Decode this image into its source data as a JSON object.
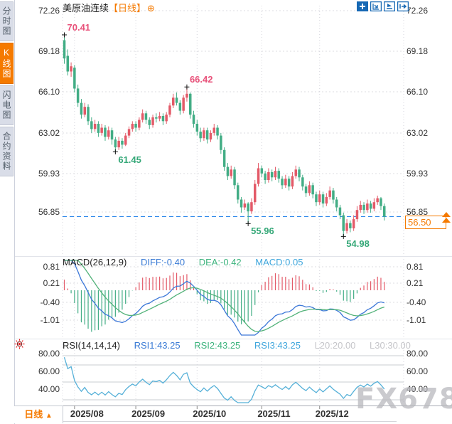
{
  "header": {
    "title": "美原油连续",
    "period": "【日线】",
    "plus_icon": "⊕"
  },
  "toolbar": {
    "icons": [
      {
        "name": "crosshair-icon"
      },
      {
        "name": "auto-scale-icon"
      },
      {
        "name": "play-forward-icon"
      },
      {
        "name": "pan-right-icon"
      }
    ]
  },
  "sidebar": {
    "items": [
      {
        "label": "分时图",
        "active": false
      },
      {
        "label": "K线图",
        "active": true
      },
      {
        "label": "闪电图",
        "active": false
      },
      {
        "label": "合约资料",
        "active": false
      }
    ]
  },
  "price_marker": {
    "value": "56.50"
  },
  "period_button": {
    "label": "日线",
    "arrow": "▲"
  },
  "watermark": "FX678",
  "chart_data": {
    "type": "candlestick",
    "title": "美原油连续 日线 (WTI crude continuous, daily)",
    "price_axis": {
      "labels": [
        "72.26",
        "69.18",
        "66.10",
        "63.02",
        "59.93",
        "56.85"
      ],
      "values": [
        72.26,
        69.18,
        66.1,
        63.02,
        59.93,
        56.85
      ]
    },
    "x_axis": {
      "labels": [
        "2025/08",
        "2025/09",
        "2025/10",
        "2025/11",
        "2025/12"
      ],
      "tick_indices": [
        3,
        21,
        39,
        58,
        75
      ]
    },
    "current_price": 56.5,
    "annotations": [
      {
        "text": "70.41",
        "index": 0,
        "price": 70.41,
        "placement": "above",
        "color": "#e8527a"
      },
      {
        "text": "66.42",
        "index": 36,
        "price": 66.42,
        "placement": "above",
        "color": "#e8527a"
      },
      {
        "text": "61.45",
        "index": 15,
        "price": 61.45,
        "placement": "below",
        "color": "#35a878"
      },
      {
        "text": "55.96",
        "index": 54,
        "price": 55.96,
        "placement": "below",
        "color": "#35a878"
      },
      {
        "text": "54.98",
        "index": 82,
        "price": 54.98,
        "placement": "below",
        "color": "#35a878"
      }
    ],
    "ohlc": [
      [
        70.0,
        70.41,
        68.2,
        68.6
      ],
      [
        68.8,
        69.3,
        67.3,
        67.6
      ],
      [
        67.6,
        68.3,
        67.2,
        68.0
      ],
      [
        67.9,
        68.1,
        66.0,
        66.3
      ],
      [
        66.3,
        66.6,
        64.9,
        65.2
      ],
      [
        65.2,
        65.5,
        64.0,
        64.3
      ],
      [
        64.3,
        65.2,
        64.1,
        64.9
      ],
      [
        64.9,
        65.1,
        63.5,
        63.8
      ],
      [
        63.8,
        64.1,
        62.9,
        63.2
      ],
      [
        63.2,
        63.9,
        63.0,
        63.6
      ],
      [
        63.6,
        63.8,
        62.6,
        62.9
      ],
      [
        62.9,
        63.6,
        62.7,
        63.3
      ],
      [
        63.3,
        63.5,
        62.3,
        62.6
      ],
      [
        62.6,
        63.4,
        62.4,
        63.1
      ],
      [
        63.1,
        63.3,
        62.0,
        62.4
      ],
      [
        62.4,
        62.6,
        61.45,
        61.8
      ],
      [
        61.8,
        62.6,
        61.6,
        62.3
      ],
      [
        62.3,
        62.5,
        61.7,
        62.0
      ],
      [
        62.0,
        62.9,
        61.9,
        62.7
      ],
      [
        62.7,
        63.4,
        62.5,
        63.2
      ],
      [
        63.2,
        63.8,
        63.0,
        63.6
      ],
      [
        63.6,
        63.8,
        63.0,
        63.3
      ],
      [
        63.3,
        64.1,
        63.1,
        63.9
      ],
      [
        63.9,
        64.7,
        63.7,
        64.4
      ],
      [
        64.4,
        64.6,
        63.6,
        63.9
      ],
      [
        63.9,
        64.1,
        63.2,
        63.5
      ],
      [
        63.5,
        64.3,
        63.3,
        64.1
      ],
      [
        64.1,
        64.4,
        63.7,
        64.0
      ],
      [
        64.0,
        64.5,
        63.8,
        64.2
      ],
      [
        64.2,
        64.4,
        63.5,
        63.8
      ],
      [
        63.8,
        64.5,
        63.6,
        64.3
      ],
      [
        64.3,
        65.2,
        64.1,
        65.0
      ],
      [
        65.0,
        65.9,
        64.8,
        65.6
      ],
      [
        65.6,
        66.0,
        65.0,
        65.2
      ],
      [
        65.2,
        65.4,
        64.3,
        64.6
      ],
      [
        64.6,
        65.8,
        64.4,
        65.6
      ],
      [
        65.6,
        66.42,
        65.3,
        65.9
      ],
      [
        65.9,
        66.0,
        64.0,
        64.3
      ],
      [
        64.3,
        64.6,
        63.3,
        63.6
      ],
      [
        63.6,
        63.9,
        62.7,
        63.0
      ],
      [
        63.0,
        63.3,
        62.2,
        62.5
      ],
      [
        62.5,
        63.3,
        62.3,
        63.1
      ],
      [
        63.1,
        63.3,
        62.1,
        62.4
      ],
      [
        62.4,
        63.1,
        62.2,
        62.9
      ],
      [
        62.9,
        63.6,
        62.7,
        63.3
      ],
      [
        63.3,
        63.5,
        62.4,
        62.7
      ],
      [
        62.7,
        62.9,
        61.3,
        61.6
      ],
      [
        61.6,
        61.8,
        60.0,
        60.3
      ],
      [
        60.3,
        60.6,
        59.3,
        59.6
      ],
      [
        59.6,
        60.4,
        59.4,
        60.1
      ],
      [
        60.1,
        60.3,
        58.6,
        58.9
      ],
      [
        58.9,
        59.1,
        57.5,
        57.8
      ],
      [
        57.8,
        58.0,
        56.8,
        57.2
      ],
      [
        57.2,
        57.8,
        57.0,
        57.5
      ],
      [
        57.5,
        57.6,
        55.96,
        56.9
      ],
      [
        56.9,
        57.9,
        56.7,
        57.6
      ],
      [
        57.6,
        59.3,
        57.4,
        59.0
      ],
      [
        59.0,
        60.6,
        58.8,
        60.2
      ],
      [
        60.2,
        60.4,
        59.5,
        59.8
      ],
      [
        59.8,
        60.0,
        59.0,
        59.3
      ],
      [
        59.3,
        60.2,
        59.1,
        59.9
      ],
      [
        59.9,
        60.1,
        59.2,
        59.5
      ],
      [
        59.5,
        60.3,
        59.3,
        60.0
      ],
      [
        60.0,
        60.2,
        59.1,
        59.4
      ],
      [
        59.4,
        59.6,
        58.6,
        58.9
      ],
      [
        58.9,
        59.7,
        58.7,
        59.4
      ],
      [
        59.4,
        59.6,
        58.5,
        58.8
      ],
      [
        58.8,
        59.9,
        58.6,
        59.6
      ],
      [
        59.6,
        60.4,
        59.4,
        60.1
      ],
      [
        60.1,
        60.3,
        59.2,
        59.5
      ],
      [
        59.5,
        59.7,
        58.5,
        58.8
      ],
      [
        58.8,
        59.0,
        58.0,
        58.3
      ],
      [
        58.3,
        59.2,
        58.1,
        58.9
      ],
      [
        58.9,
        59.1,
        57.9,
        58.2
      ],
      [
        58.2,
        58.4,
        57.3,
        57.6
      ],
      [
        57.6,
        58.5,
        57.4,
        58.2
      ],
      [
        58.2,
        58.4,
        57.2,
        57.5
      ],
      [
        57.5,
        58.3,
        57.3,
        58.0
      ],
      [
        58.0,
        58.8,
        57.8,
        58.5
      ],
      [
        58.5,
        58.7,
        57.5,
        57.8
      ],
      [
        57.8,
        58.0,
        56.9,
        57.2
      ],
      [
        57.2,
        57.4,
        56.3,
        56.6
      ],
      [
        56.6,
        56.8,
        54.98,
        55.4
      ],
      [
        55.4,
        56.3,
        55.2,
        56.0
      ],
      [
        56.0,
        56.2,
        55.3,
        55.6
      ],
      [
        55.6,
        56.6,
        55.4,
        56.3
      ],
      [
        56.3,
        57.3,
        56.1,
        57.0
      ],
      [
        57.0,
        57.7,
        56.8,
        57.4
      ],
      [
        57.4,
        57.6,
        56.7,
        57.0
      ],
      [
        57.0,
        57.8,
        56.8,
        57.5
      ],
      [
        57.5,
        57.7,
        56.8,
        57.1
      ],
      [
        57.1,
        57.9,
        56.9,
        57.6
      ],
      [
        57.6,
        58.1,
        57.4,
        57.9
      ],
      [
        57.9,
        58.0,
        57.0,
        57.3
      ],
      [
        57.3,
        57.5,
        56.2,
        56.5
      ]
    ],
    "macd": {
      "legend": {
        "name": "MACD(26,12,9)",
        "diff": "DIFF:-0.40",
        "dea": "DEA:-0.42",
        "macd": "MACD:0.05"
      },
      "axis_labels": [
        "0.81",
        "0.21",
        "-0.40",
        "-1.01"
      ],
      "axis_values": [
        0.81,
        0.21,
        -0.4,
        -1.01
      ]
    },
    "rsi": {
      "legend": {
        "name": "RSI(14,14,14)",
        "rsi1": "RSI1:43.25",
        "rsi2": "RSI2:43.25",
        "rsi3": "RSI3:43.25",
        "l20": "L20:20.00",
        "l30": "L30:30.00"
      },
      "axis_labels": [
        "80.00",
        "60.00",
        "40.00"
      ],
      "axis_values": [
        80,
        60,
        40
      ]
    },
    "colors": {
      "up": "#e35a68",
      "down": "#42ad85",
      "diff_line": "#3d78d8",
      "dea_line": "#52b279",
      "rsi_line": "#55b0d8",
      "current_line": "#2b87ea",
      "accent": "#f57a00",
      "annotation_up": "#e8527a",
      "annotation_down": "#35a878"
    }
  }
}
